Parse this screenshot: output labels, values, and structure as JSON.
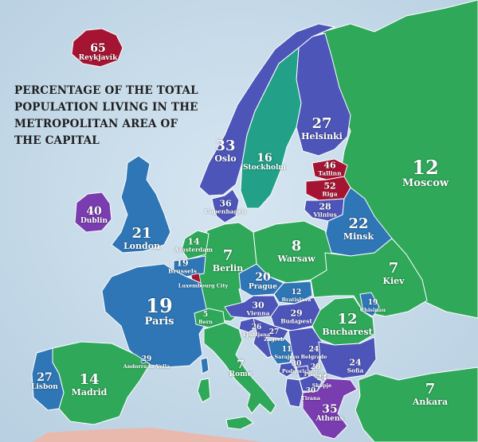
{
  "title_lines": [
    "PERCENTAGE OF THE TOTAL",
    "POPULATION LIVING IN THE",
    "METROPOLITAN AREA OF",
    "THE CAPITAL"
  ],
  "colors": {
    "sea": "#c9dcea",
    "green": "#2fa85a",
    "teal": "#23a088",
    "blue": "#2f76b6",
    "indigo": "#4d56b8",
    "purple": "#7a3db0",
    "red": "#a51533",
    "land_outside": "#eab9ae"
  },
  "countries": [
    {
      "name": "iceland",
      "pct": "65",
      "city": "Reykjavík",
      "color": "#a51533"
    },
    {
      "name": "ireland",
      "pct": "40",
      "city": "Dublin",
      "color": "#7a3db0"
    },
    {
      "name": "uk",
      "pct": "21",
      "city": "London",
      "color": "#2f76b6"
    },
    {
      "name": "norway",
      "pct": "33",
      "city": "Oslo",
      "color": "#4d56b8"
    },
    {
      "name": "sweden",
      "pct": "16",
      "city": "Stockholm",
      "color": "#23a088"
    },
    {
      "name": "finland",
      "pct": "27",
      "city": "Helsinki",
      "color": "#4d56b8"
    },
    {
      "name": "estonia",
      "pct": "46",
      "city": "Tallinn",
      "color": "#a51533"
    },
    {
      "name": "latvia",
      "pct": "52",
      "city": "Riga",
      "color": "#a51533"
    },
    {
      "name": "lithuania",
      "pct": "28",
      "city": "Vilnius",
      "color": "#4d56b8"
    },
    {
      "name": "denmark",
      "pct": "36",
      "city": "Copenhagen",
      "color": "#4d56b8"
    },
    {
      "name": "russia",
      "pct": "12",
      "city": "Moscow",
      "color": "#2fa85a"
    },
    {
      "name": "belarus",
      "pct": "22",
      "city": "Minsk",
      "color": "#2f76b6"
    },
    {
      "name": "netherlands",
      "pct": "14",
      "city": "Amsterdam",
      "color": "#2fa85a"
    },
    {
      "name": "belgium",
      "pct": "19",
      "city": "Brussels",
      "color": "#2f76b6"
    },
    {
      "name": "luxembourg",
      "pct": "",
      "city": "Luxembourg City",
      "color": "#a51533"
    },
    {
      "name": "germany",
      "pct": "7",
      "city": "Berlin",
      "color": "#2fa85a"
    },
    {
      "name": "poland",
      "pct": "8",
      "city": "Warsaw",
      "color": "#2fa85a"
    },
    {
      "name": "ukraine",
      "pct": "7",
      "city": "Kiev",
      "color": "#2fa85a"
    },
    {
      "name": "moldova",
      "pct": "19",
      "city": "Chisinau",
      "color": "#2f76b6"
    },
    {
      "name": "france",
      "pct": "19",
      "city": "Paris",
      "color": "#2f76b6"
    },
    {
      "name": "switzerland",
      "pct": "5",
      "city": "Bern",
      "color": "#2fa85a"
    },
    {
      "name": "czechia",
      "pct": "20",
      "city": "Prague",
      "color": "#2f76b6"
    },
    {
      "name": "slovakia",
      "pct": "12",
      "city": "Bratislava",
      "color": "#2f76b6"
    },
    {
      "name": "austria",
      "pct": "30",
      "city": "Vienna",
      "color": "#4d56b8"
    },
    {
      "name": "hungary",
      "pct": "29",
      "city": "Budapest",
      "color": "#4d56b8"
    },
    {
      "name": "romania",
      "pct": "12",
      "city": "Bucharest",
      "color": "#2fa85a"
    },
    {
      "name": "slovenia",
      "pct": "26",
      "city": "Ljubljana",
      "color": "#4d56b8"
    },
    {
      "name": "croatia",
      "pct": "27",
      "city": "Zagreb",
      "color": "#4d56b8"
    },
    {
      "name": "bosnia",
      "pct": "11",
      "city": "Sarajevo",
      "color": "#2f76b6"
    },
    {
      "name": "serbia",
      "pct": "24",
      "city": "Belgrade",
      "color": "#4d56b8"
    },
    {
      "name": "montenegro",
      "pct": "30",
      "city": "Podgorica",
      "color": "#4d56b8"
    },
    {
      "name": "kosovo",
      "pct": "28",
      "city": "Pristina",
      "color": "#4d56b8"
    },
    {
      "name": "north_macedonia",
      "pct": "24",
      "city": "Skopje",
      "color": "#4d56b8"
    },
    {
      "name": "albania",
      "pct": "30",
      "city": "Tirana",
      "color": "#4d56b8"
    },
    {
      "name": "bulgaria",
      "pct": "24",
      "city": "Sofia",
      "color": "#4d56b8"
    },
    {
      "name": "greece",
      "pct": "35",
      "city": "Athens",
      "color": "#7a3db0"
    },
    {
      "name": "italy",
      "pct": "7",
      "city": "Rome",
      "color": "#2fa85a"
    },
    {
      "name": "andorra",
      "pct": "29",
      "city": "Andorra la Vella",
      "color": "#2f76b6"
    },
    {
      "name": "spain",
      "pct": "14",
      "city": "Madrid",
      "color": "#2fa85a"
    },
    {
      "name": "portugal",
      "pct": "27",
      "city": "Lisbon",
      "color": "#2f76b6"
    },
    {
      "name": "turkey",
      "pct": "7",
      "city": "Ankara",
      "color": "#2fa85a"
    }
  ]
}
